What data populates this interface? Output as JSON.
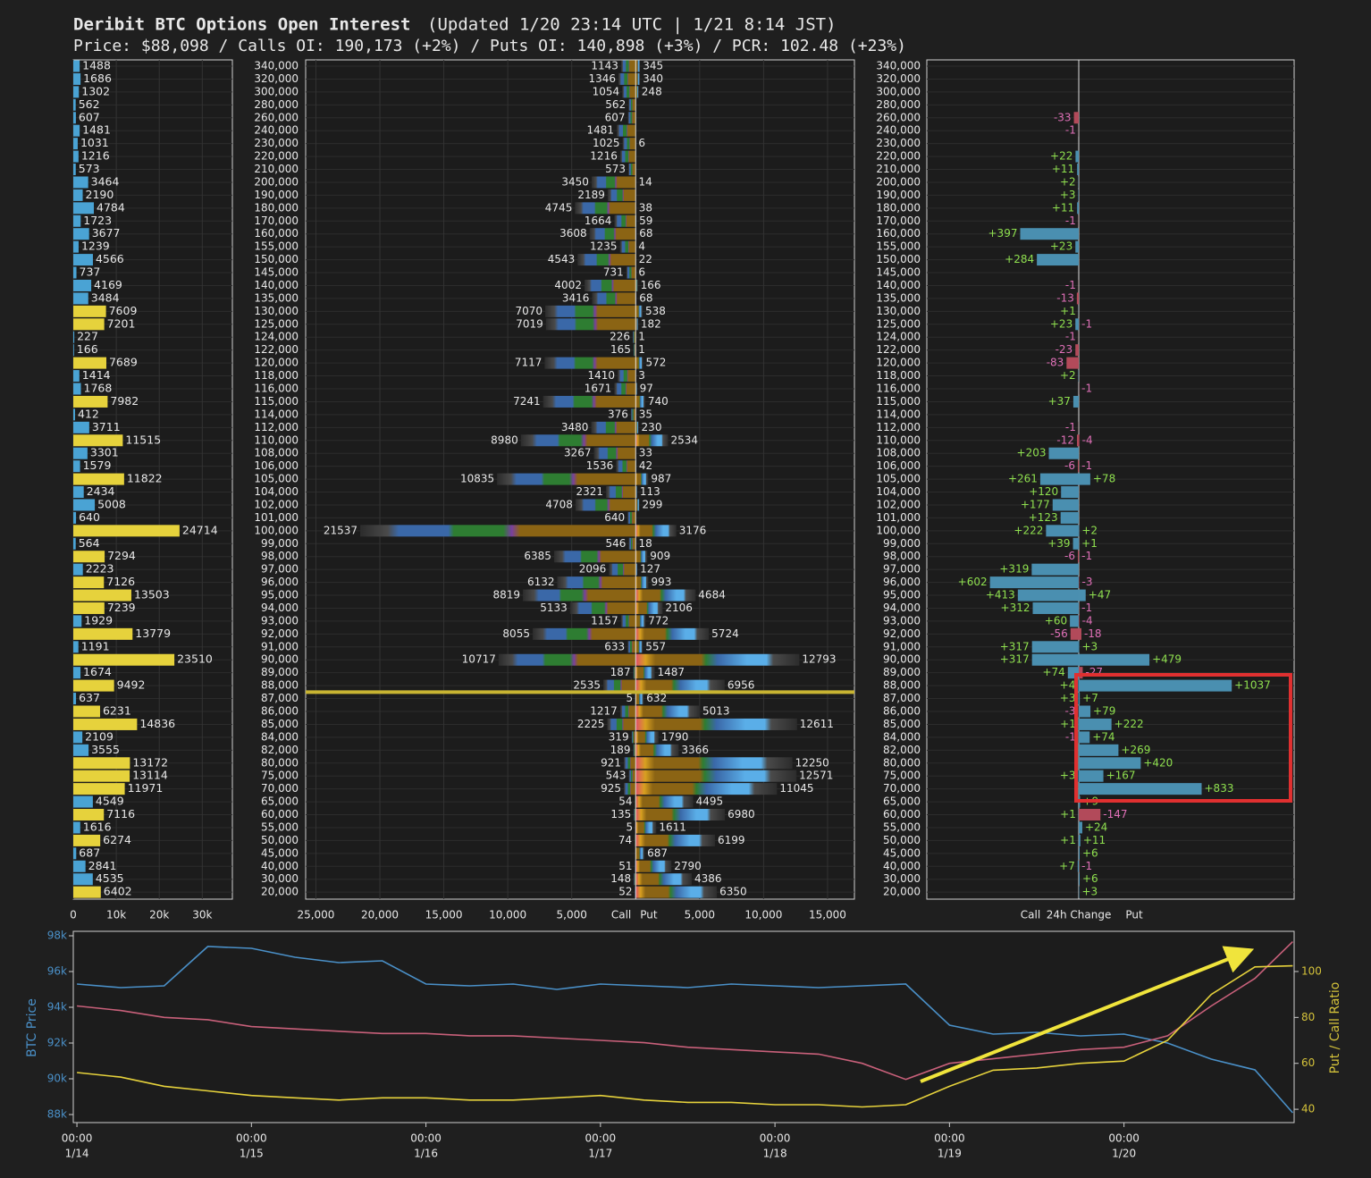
{
  "title": "Deribit BTC Options Open Interest",
  "title_note": "(Updated 1/20 23:14 UTC | 1/21 8:14 JST)",
  "subtitle": "Price: $88,098 / Calls OI: 190,173 (+2%) / Puts OI: 140,898 (+3%) / PCR: 102.48 (+23%)",
  "chart_data": [
    {
      "type": "hbar",
      "values": [
        1488,
        1686,
        1302,
        562,
        607,
        1481,
        1031,
        1216,
        573,
        3464,
        2190,
        4784,
        1723,
        3677,
        1239,
        4566,
        737,
        4169,
        3484,
        7609,
        7201,
        227,
        166,
        7689,
        1414,
        1768,
        7982,
        412,
        3711,
        11515,
        3301,
        1579,
        11822,
        2434,
        5008,
        640,
        24714,
        564,
        7294,
        2223,
        7126,
        13503,
        7239,
        1929,
        13779,
        1191,
        23510,
        1674,
        9492,
        637,
        6231,
        14836,
        2109,
        3555,
        13172,
        13114,
        11971,
        4549,
        7116,
        1616,
        6274,
        687,
        2841,
        4535,
        6402
      ],
      "colors": [
        "#4aa3d4",
        "#4aa3d4",
        "#4aa3d4",
        "#4aa3d4",
        "#4aa3d4",
        "#4aa3d4",
        "#4aa3d4",
        "#4aa3d4",
        "#4aa3d4",
        "#4aa3d4",
        "#4aa3d4",
        "#4aa3d4",
        "#4aa3d4",
        "#4aa3d4",
        "#4aa3d4",
        "#4aa3d4",
        "#4aa3d4",
        "#4aa3d4",
        "#4aa3d4",
        "#e6d23c",
        "#e6d23c",
        "#4aa3d4",
        "#4aa3d4",
        "#e6d23c",
        "#4aa3d4",
        "#4aa3d4",
        "#e6d23c",
        "#4aa3d4",
        "#4aa3d4",
        "#e6d23c",
        "#4aa3d4",
        "#4aa3d4",
        "#e6d23c",
        "#4aa3d4",
        "#4aa3d4",
        "#4aa3d4",
        "#e6d23c",
        "#4aa3d4",
        "#e6d23c",
        "#4aa3d4",
        "#e6d23c",
        "#e6d23c",
        "#e6d23c",
        "#4aa3d4",
        "#e6d23c",
        "#4aa3d4",
        "#e6d23c",
        "#4aa3d4",
        "#e6d23c",
        "#4aa3d4",
        "#e6d23c",
        "#e6d23c",
        "#4aa3d4",
        "#4aa3d4",
        "#e6d23c",
        "#e6d23c",
        "#e6d23c",
        "#4aa3d4",
        "#e6d23c",
        "#4aa3d4",
        "#e6d23c",
        "#4aa3d4",
        "#4aa3d4",
        "#4aa3d4",
        "#e6d23c"
      ],
      "xlim": [
        0,
        37000
      ],
      "xticks": [
        0,
        {
          "value": 10000,
          "label": "10k"
        },
        {
          "value": 20000,
          "label": "20k"
        },
        {
          "value": 30000,
          "label": "30k"
        }
      ]
    },
    {
      "type": "butterfly",
      "categories": [
        "340,000",
        "320,000",
        "300,000",
        "280,000",
        "260,000",
        "240,000",
        "230,000",
        "220,000",
        "210,000",
        "200,000",
        "190,000",
        "180,000",
        "170,000",
        "160,000",
        "155,000",
        "150,000",
        "145,000",
        "140,000",
        "135,000",
        "130,000",
        "125,000",
        "124,000",
        "122,000",
        "120,000",
        "118,000",
        "116,000",
        "115,000",
        "114,000",
        "112,000",
        "110,000",
        "108,000",
        "106,000",
        "105,000",
        "104,000",
        "102,000",
        "101,000",
        "100,000",
        "99,000",
        "98,000",
        "97,000",
        "96,000",
        "95,000",
        "94,000",
        "93,000",
        "92,000",
        "91,000",
        "90,000",
        "89,000",
        "88,000",
        "87,000",
        "86,000",
        "85,000",
        "84,000",
        "82,000",
        "80,000",
        "75,000",
        "70,000",
        "65,000",
        "60,000",
        "55,000",
        "50,000",
        "45,000",
        "40,000",
        "30,000",
        "20,000"
      ],
      "series": [
        {
          "name": "Call",
          "values": [
            1143,
            1346,
            1054,
            562,
            607,
            1481,
            1025,
            1216,
            573,
            3450,
            2189,
            4745,
            1664,
            3608,
            1235,
            4543,
            731,
            4002,
            3416,
            7070,
            7019,
            226,
            165,
            7117,
            1410,
            1671,
            7241,
            376,
            3480,
            8980,
            3267,
            1536,
            10835,
            2321,
            4708,
            640,
            21537,
            546,
            6385,
            2096,
            6132,
            8819,
            5133,
            1157,
            8055,
            633,
            10717,
            187,
            2535,
            5,
            1217,
            2225,
            319,
            189,
            921,
            543,
            925,
            54,
            135,
            5,
            74,
            null,
            51,
            148,
            52
          ]
        },
        {
          "name": "Put",
          "values": [
            345,
            340,
            248,
            null,
            null,
            null,
            6,
            null,
            null,
            14,
            null,
            38,
            59,
            68,
            4,
            22,
            6,
            166,
            68,
            538,
            182,
            1,
            1,
            572,
            3,
            97,
            740,
            35,
            230,
            2534,
            33,
            42,
            987,
            113,
            299,
            null,
            3176,
            18,
            909,
            127,
            993,
            4684,
            2106,
            772,
            5724,
            557,
            12793,
            1487,
            6956,
            632,
            5013,
            12611,
            1790,
            3366,
            12250,
            12571,
            11045,
            4495,
            6980,
            1611,
            6199,
            687,
            2790,
            4386,
            6350
          ]
        }
      ],
      "price_line": 88098,
      "price_color": "#c8b432",
      "xlim": [
        -25800,
        17100
      ],
      "xticks": [
        {
          "value": -25000,
          "label": "25,000"
        },
        {
          "value": -20000,
          "label": "20,000"
        },
        {
          "value": -15000,
          "label": "15,000"
        },
        {
          "value": -10000,
          "label": "10,000"
        },
        {
          "value": -5000,
          "label": "5,000"
        },
        {
          "value": 5000,
          "label": "5,000"
        },
        {
          "value": 10000,
          "label": "10,000"
        },
        {
          "value": 15000,
          "label": "15,000"
        }
      ]
    },
    {
      "type": "change",
      "xlabel": "24h Change",
      "pos_color": "#4a8fb0",
      "neg_color": "#b24a5a",
      "pos_label_color": "#8fe04f",
      "neg_label_color": "#e070b8",
      "xlim": [
        -1030,
        1460
      ],
      "series": [
        {
          "name": "Call",
          "values": [
            null,
            null,
            null,
            null,
            -33,
            -1,
            null,
            22,
            11,
            2,
            3,
            11,
            -1,
            397,
            23,
            284,
            null,
            -1,
            -13,
            1,
            23,
            -1,
            -23,
            -83,
            2,
            null,
            37,
            null,
            -1,
            -12,
            203,
            -6,
            261,
            120,
            177,
            123,
            222,
            39,
            -6,
            319,
            602,
            413,
            312,
            60,
            -56,
            317,
            317,
            74,
            4,
            3,
            -3,
            1,
            -1,
            null,
            null,
            3,
            null,
            null,
            1,
            null,
            1,
            null,
            7,
            null,
            null
          ],
          "value_labels": [
            null,
            null,
            null,
            null,
            "-33",
            "-1",
            null,
            "+22",
            "+11",
            "+2",
            "+3",
            "+11",
            "-1",
            "+397",
            "+23",
            "+284",
            null,
            "-1",
            "-13",
            "+1",
            "+23",
            "-1",
            "-23",
            "-83",
            "+2",
            null,
            "+37",
            null,
            "-1",
            "-12",
            "+203",
            "-6",
            "+261",
            "+120",
            "+177",
            "+123",
            "+222",
            "+39",
            "-6",
            "+319",
            "+602",
            "+413",
            "+312",
            "+60",
            "-56",
            "+317",
            "+317",
            "+74",
            "+4",
            "+3",
            "-3",
            "+1",
            "-1",
            null,
            null,
            "+3",
            null,
            null,
            "+1",
            null,
            "+1",
            null,
            "+7",
            null,
            null
          ]
        },
        {
          "name": "Put",
          "values": [
            null,
            null,
            null,
            null,
            null,
            null,
            null,
            null,
            null,
            null,
            null,
            null,
            null,
            null,
            null,
            null,
            null,
            null,
            null,
            null,
            -1,
            null,
            null,
            null,
            null,
            -1,
            null,
            null,
            null,
            -4,
            null,
            -1,
            78,
            null,
            null,
            null,
            2,
            1,
            -1,
            null,
            -3,
            47,
            -1,
            -4,
            -18,
            3,
            479,
            -27,
            1037,
            7,
            79,
            222,
            74,
            269,
            420,
            167,
            833,
            9,
            -147,
            24,
            11,
            6,
            -1,
            6,
            3
          ],
          "value_labels": [
            null,
            null,
            null,
            null,
            null,
            null,
            null,
            null,
            null,
            null,
            null,
            null,
            null,
            null,
            null,
            null,
            null,
            null,
            null,
            null,
            "-1",
            null,
            null,
            null,
            null,
            "-1",
            null,
            null,
            null,
            "-4",
            null,
            "-1",
            "+78",
            null,
            null,
            null,
            "+2",
            "+1",
            "-1",
            null,
            "-3",
            "+47",
            "-1",
            "-4",
            "-18",
            "+3",
            "+479",
            "-27",
            "+1037",
            "+7",
            "+79",
            "+222",
            "+74",
            "+269",
            "+420",
            "+167",
            "+833",
            "+9",
            "-147",
            "+24",
            "+11",
            "+6",
            "-1",
            "+6",
            "+3"
          ]
        }
      ]
    },
    {
      "type": "line",
      "ylabel": "BTC Price",
      "y2label": "Put / Call Ratio",
      "x": [
        0,
        6,
        12,
        18,
        24,
        30,
        36,
        42,
        48,
        54,
        60,
        66,
        72,
        78,
        84,
        90,
        96,
        102,
        108,
        114,
        120,
        126,
        132,
        138,
        144,
        150,
        156,
        162,
        167.2
      ],
      "xlim": [
        -0.5,
        167.4
      ],
      "xticks": [
        {
          "value": 0,
          "label": "00:00"
        },
        {
          "value": 24,
          "label": "00:00"
        },
        {
          "value": 48,
          "label": "00:00"
        },
        {
          "value": 72,
          "label": "00:00"
        },
        {
          "value": 96,
          "label": "00:00"
        },
        {
          "value": 120,
          "label": "00:00"
        },
        {
          "value": 144,
          "label": "00:00"
        }
      ],
      "xtick_dates": [
        "1/14",
        "1/15",
        "1/16",
        "1/17",
        "1/18",
        "1/19",
        "1/20"
      ],
      "ylim": [
        87550,
        98250
      ],
      "yticks": [
        {
          "value": 88000,
          "label": "88k"
        },
        {
          "value": 90000,
          "label": "90k"
        },
        {
          "value": 92000,
          "label": "92k"
        },
        {
          "value": 94000,
          "label": "94k"
        },
        {
          "value": 96000,
          "label": "96k"
        },
        {
          "value": 98000,
          "label": "98k"
        }
      ],
      "y2lim": [
        34.2,
        117.5
      ],
      "y2ticks": [
        40,
        60,
        80,
        100
      ],
      "ycolor": "#4a90c8",
      "y2color": "#d4c23a",
      "series": [
        {
          "color": "#4a90c8",
          "values": [
            95300,
            95100,
            95200,
            97400,
            97300,
            96800,
            96500,
            96600,
            95300,
            95200,
            95300,
            95000,
            95300,
            95200,
            95100,
            95300,
            95200,
            95100,
            95200,
            95300,
            93000,
            92500,
            92600,
            92400,
            92500,
            92000,
            91100,
            90500,
            88100
          ]
        },
        {
          "color": "#c8607a",
          "axis": "y2",
          "values": [
            85,
            83,
            80,
            79,
            76,
            75,
            74,
            73,
            73,
            72,
            72,
            71,
            70,
            69,
            67,
            66,
            65,
            64,
            60,
            53,
            60,
            62,
            64,
            66,
            67,
            72,
            85,
            97,
            113
          ]
        },
        {
          "color": "#e6d23c",
          "axis": "y2",
          "values": [
            56,
            54,
            50,
            48,
            46,
            45,
            44,
            45,
            45,
            44,
            44,
            45,
            46,
            44,
            43,
            43,
            42,
            42,
            41,
            42,
            50,
            57,
            58,
            60,
            61,
            70,
            90,
            102,
            102.48
          ]
        }
      ]
    }
  ]
}
